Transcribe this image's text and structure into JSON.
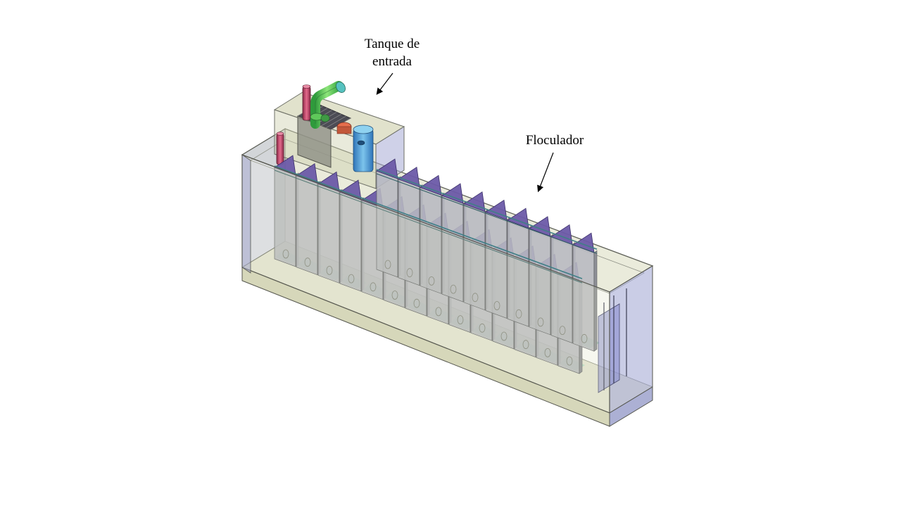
{
  "labels": {
    "tanque_line1": "Tanque  de",
    "tanque_line2": "entrada",
    "floculador": "Floculador"
  },
  "colors": {
    "background": "#ffffff",
    "tank_fill": "#d6d7b8",
    "tank_edge": "#6d6f66",
    "end_wall": "#a8acd6",
    "baffle_face": "#b7b8c0",
    "baffle_top": "#6b5aa8",
    "water": "#a8dcc4",
    "pipe_green": "#6fd36a",
    "pipe_red": "#c9446a",
    "pipe_blue": "#4a9fd0",
    "pipe_orange": "#e0704a"
  },
  "objects": {
    "baffle_count": 24
  }
}
